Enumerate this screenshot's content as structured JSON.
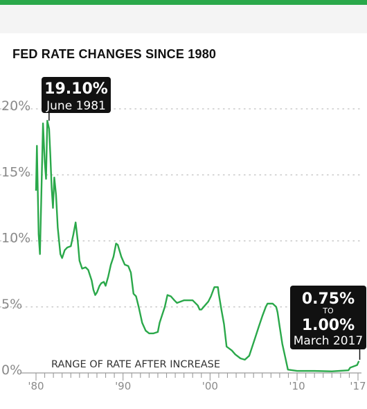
{
  "chart_data": {
    "type": "line",
    "title": "FED RATE CHANGES SINCE 1980",
    "xlabel": "",
    "ylabel": "",
    "xlim": [
      1980,
      2017
    ],
    "ylim": [
      0,
      20
    ],
    "grid": "dotted horizontal",
    "color": "#2aa84a",
    "y_ticks": [
      "0%",
      "5%",
      "10%",
      "15%",
      "20%"
    ],
    "y_tick_values": [
      0,
      5,
      10,
      15,
      20
    ],
    "x_ticks": [
      "'80",
      "'90",
      "'00",
      "'10",
      "'17"
    ],
    "x_tick_values": [
      1980,
      1990,
      2000,
      2010,
      2017
    ],
    "annotation_bottom": "RANGE OF RATE AFTER INCREASE",
    "callout_peak": {
      "value": "19.10%",
      "date": "June 1981",
      "x": 1981.5,
      "y": 19.1
    },
    "callout_latest": {
      "from": "0.75%",
      "connector": "TO",
      "to": "1.00%",
      "date": "March 2017",
      "x": 2017.2,
      "y": 1.0
    },
    "series": [
      {
        "x": [
          1980.0,
          1980.1,
          1980.3,
          1980.45,
          1980.6,
          1980.8,
          1981.0,
          1981.15,
          1981.3,
          1981.5,
          1981.65,
          1981.8,
          1981.95,
          1982.1,
          1982.3,
          1982.5,
          1982.65,
          1982.8,
          1983.0,
          1983.3,
          1983.6,
          1984.0,
          1984.3,
          1984.55,
          1984.8,
          1985.0,
          1985.3,
          1985.7,
          1986.0,
          1986.4,
          1986.6,
          1986.8,
          1987.0,
          1987.3,
          1987.5,
          1987.8,
          1988.0,
          1988.3,
          1988.6,
          1988.9,
          1989.2,
          1989.4,
          1989.8,
          1990.2,
          1990.6,
          1990.9,
          1991.2,
          1991.5,
          1991.8,
          1992.2,
          1992.6,
          1993.0,
          1993.5,
          1994.0,
          1994.2,
          1994.5,
          1994.8,
          1995.1,
          1995.5,
          1995.9,
          1996.2,
          1996.6,
          1997.0,
          1997.5,
          1998.0,
          1998.6,
          1998.8,
          1999.0,
          1999.4,
          1999.8,
          2000.1,
          2000.5,
          2000.9,
          2001.0,
          2001.3,
          2001.6,
          2001.9,
          2002.5,
          2002.9,
          2003.5,
          2004.0,
          2004.5,
          2004.8,
          2005.2,
          2005.6,
          2006.0,
          2006.4,
          2006.6,
          2007.2,
          2007.6,
          2007.75,
          2008.0,
          2008.3,
          2008.7,
          2008.95,
          2010.0,
          2012.0,
          2014.0,
          2015.9,
          2016.1,
          2016.9,
          2017.1
        ],
        "y": [
          13.8,
          17.2,
          10.5,
          9.0,
          13.0,
          18.9,
          16.0,
          14.7,
          19.1,
          18.5,
          16.5,
          14.0,
          12.5,
          14.8,
          13.5,
          11.0,
          10.0,
          9.0,
          8.7,
          9.3,
          9.5,
          9.6,
          10.5,
          11.4,
          10.0,
          8.5,
          7.9,
          8.0,
          7.8,
          7.0,
          6.3,
          5.9,
          6.1,
          6.6,
          6.8,
          6.9,
          6.6,
          7.3,
          8.2,
          8.8,
          9.8,
          9.7,
          8.8,
          8.2,
          8.1,
          7.6,
          6.0,
          5.8,
          5.0,
          3.8,
          3.2,
          3.0,
          3.0,
          3.1,
          3.8,
          4.4,
          5.0,
          5.9,
          5.8,
          5.5,
          5.3,
          5.4,
          5.5,
          5.5,
          5.5,
          5.1,
          4.8,
          4.8,
          5.1,
          5.4,
          5.8,
          6.5,
          6.5,
          6.0,
          4.8,
          3.7,
          2.0,
          1.7,
          1.4,
          1.1,
          1.0,
          1.3,
          1.9,
          2.7,
          3.5,
          4.3,
          5.0,
          5.25,
          5.25,
          5.0,
          4.6,
          3.5,
          2.2,
          1.0,
          0.25,
          0.15,
          0.15,
          0.12,
          0.2,
          0.4,
          0.6,
          0.9
        ]
      }
    ]
  }
}
